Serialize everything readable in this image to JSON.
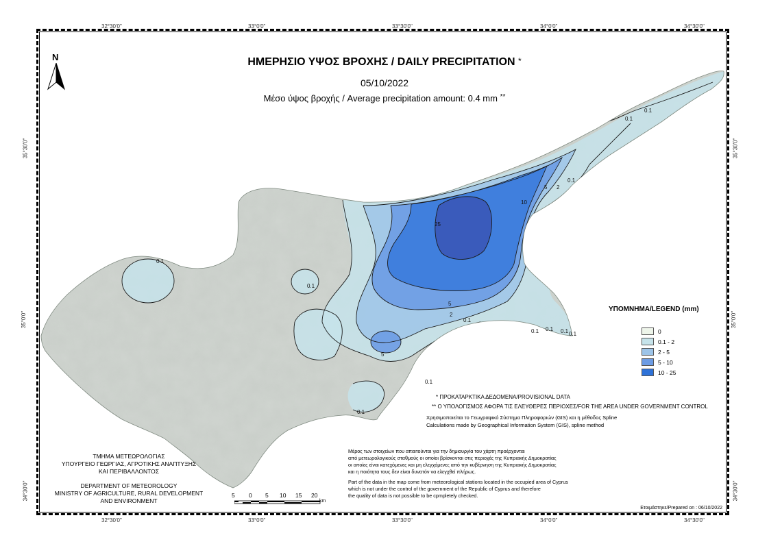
{
  "title": {
    "main": "ΗΜΕΡΗΣΙΟ ΥΨΟΣ ΒΡΟΧΗΣ / DAILY PRECIPITATION",
    "main_marker": "*",
    "date": "05/10/2022",
    "average": "Μέσο ύψος βροχής / Average precipitation amount: 0.4 mm",
    "average_marker": "**"
  },
  "north_arrow": {
    "label": "N",
    "icon": "north-arrow-icon"
  },
  "grid": {
    "longitudes": [
      "32°30'0\"",
      "33°0'0\"",
      "33°30'0\"",
      "34°0'0\"",
      "34°30'0\""
    ],
    "latitudes": [
      "35°30'0\"",
      "35°0'0\"",
      "34°30'0\""
    ]
  },
  "contour_labels": [
    "0.1",
    "0.1",
    "0.1",
    "0.1",
    "0.1",
    "0.1",
    "0.1",
    "0.1",
    "0.1",
    "2",
    "2",
    "5",
    "5",
    "5",
    "10",
    "25",
    "0.1",
    "0.1",
    "0.1"
  ],
  "legend": {
    "title": "ΥΠΟΜΝΗΜΑ/LEGEND (mm)",
    "items": [
      {
        "label": "0",
        "color": "#eef5ea"
      },
      {
        "label": "0.1 - 2",
        "color": "#c6e3ea"
      },
      {
        "label": "2 - 5",
        "color": "#9dc4e8"
      },
      {
        "label": "5 - 10",
        "color": "#6d9ce4"
      },
      {
        "label": "10 - 25",
        "color": "#2e72d8"
      }
    ]
  },
  "notes": {
    "provisional": "* ΠΡΟΚΑΤΑΡΚΤΙΚΑ ΔΕΔΟΜΕΝΑ/PROVISIONAL DATA",
    "area": "** Ο ΥΠΟΛΟΓΙΣΜΟΣ ΑΦΟΡΑ ΤΙΣ ΕΛΕΥΘΕΡΕΣ ΠΕΡΙΟΧΕΣ/FOR THE AREA UNDER GOVERNMENT CONTROL",
    "gis_gr": "Χρησιμοποιείται το Γεωγραφικό Σύστημα Πληροφοριών (GIS) και η μέθοδος Spline",
    "gis_en": "Calculations made by Geographical Information System (GIS), spline method"
  },
  "disclaimer": {
    "gr": [
      "Μέρος των στοιχείων που απαιτούνται για την δημιουργία του χάρτη προέρχονται",
      "από μετεωρολογικούς σταθμούς οι οποίοι βρίσκονται στις περιοχές της Κυπριακής Δημοκρατίας",
      "οι οποίες είναι κατεχόμενες και μη ελεγχόμενες από την κυβέρνηση της Κυπριακής Δημοκρατίας",
      "και η ποιότητα τους δεν είναι δυνατόν να ελεγχθεί πλήρως."
    ],
    "en": [
      "Part of the data in the map come from meteorological stations located in the occupied area of Cyprus",
      "which is not under the control of the government of the Republic of Cyprus and therefore",
      "the quality of data is not possible to be cpmpletely checked."
    ]
  },
  "department": {
    "gr": [
      "ΤΜΗΜΑ ΜΕΤΕΩΡΟΛΟΓΙΑΣ",
      "ΥΠΟΥΡΓΕΙΟ ΓΕΩΡΓΙΑΣ, ΑΓΡΟΤΙΚΗΣ ΑΝΑΠΤΥΞΗΣ",
      "ΚΑΙ ΠΕΡΙΒΑΛΛΟΝΤΟΣ"
    ],
    "en": [
      "DEPARTMENT OF METEOROLOGY",
      "MINISTRY OF AGRICULTURE, RURAL DEVELOPMENT",
      "AND ENVIRONMENT"
    ]
  },
  "scale": {
    "ticks": [
      "5",
      "0",
      "5",
      "10",
      "15",
      "20"
    ],
    "unit": "km"
  },
  "prepared": "Ετοιμάστηκε/Prepared on : 06/10/2022"
}
